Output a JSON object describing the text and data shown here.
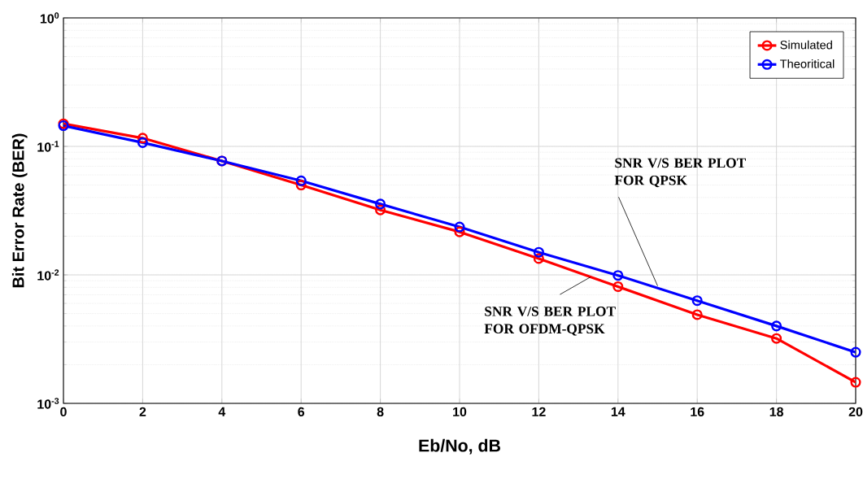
{
  "chart_data": {
    "type": "line",
    "xlabel": "Eb/No, dB",
    "ylabel": "Bit Error Rate (BER)",
    "x": [
      0,
      2,
      4,
      6,
      8,
      10,
      12,
      14,
      16,
      18,
      20
    ],
    "series": [
      {
        "name": "Simulated",
        "color": "#ff0000",
        "values": [
          0.15,
          0.116,
          0.077,
          0.05,
          0.032,
          0.0216,
          0.0134,
          0.0081,
          0.0049,
          0.0032,
          0.00146
        ]
      },
      {
        "name": "Theoritical",
        "color": "#0000ff",
        "values": [
          0.145,
          0.107,
          0.077,
          0.054,
          0.0356,
          0.0236,
          0.015,
          0.0099,
          0.0063,
          0.004,
          0.0025
        ]
      }
    ],
    "xlim": [
      0,
      20
    ],
    "xticks": [
      0,
      2,
      4,
      6,
      8,
      10,
      12,
      14,
      16,
      18,
      20
    ],
    "ylim": [
      0.001,
      1
    ],
    "yticks": [
      {
        "value": 0.001,
        "label": "10$^{-3}$"
      },
      {
        "value": 0.01,
        "label": "10$^{-2}$"
      },
      {
        "value": 0.1,
        "label": "10$^{-1}$"
      },
      {
        "value": 1,
        "label": "10$^{0}$"
      }
    ],
    "log": "y",
    "grid": true,
    "legend": "top right",
    "marker": "circle",
    "line_style": "solid",
    "annotations": [
      {
        "text": "SNR V/S BER PLOT FOR QPSK",
        "x": 15,
        "y": 0.0082
      },
      {
        "text": "SNR V/S BER PLOT FOR OFDM-QPSK",
        "x": 13.3,
        "y": 0.0096
      }
    ]
  }
}
